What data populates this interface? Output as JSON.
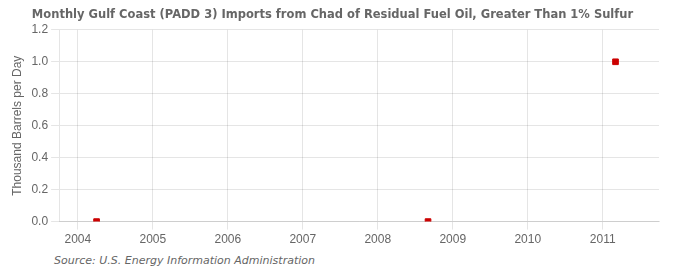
{
  "chart_data": {
    "type": "scatter",
    "title": "Monthly Gulf Coast (PADD 3) Imports from Chad of Residual Fuel Oil, Greater Than 1% Sulfur",
    "ylabel": "Thousand Barrels per Day",
    "annotations": [
      "Source: U.S. Energy Information Administration"
    ],
    "x": [
      2004.25,
      2008.67,
      2011.17
    ],
    "values": [
      0.0,
      0.0,
      1.0
    ],
    "color": "#cc0000",
    "marker": "square",
    "xlim": [
      2003.75,
      2011.75
    ],
    "xticks": [
      2004,
      2005,
      2006,
      2007,
      2008,
      2009,
      2010,
      2011
    ],
    "ylim": [
      0.0,
      1.2
    ],
    "yticks": [
      {
        "value": 0.0,
        "label": "0.0"
      },
      {
        "value": 0.2,
        "label": "0.2"
      },
      {
        "value": 0.4,
        "label": "0.4"
      },
      {
        "value": 0.6,
        "label": "0.6"
      },
      {
        "value": 0.8,
        "label": "0.8"
      },
      {
        "value": 1.0,
        "label": "1.0"
      },
      {
        "value": 1.2,
        "label": "1.2"
      }
    ],
    "grid": true
  }
}
